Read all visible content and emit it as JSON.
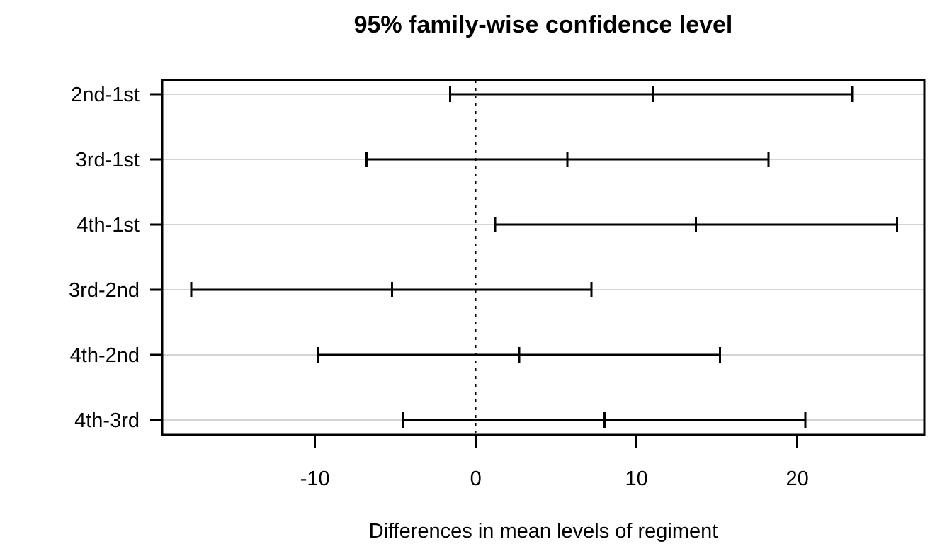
{
  "chart_data": {
    "type": "scatter",
    "subtype": "confidence-interval-plot (Tukey HSD)",
    "title": "95% family-wise confidence level",
    "xlabel": "Differences in mean levels of regiment",
    "ylabel": "",
    "categories": [
      "2nd-1st",
      "3rd-1st",
      "4th-1st",
      "3rd-2nd",
      "4th-2nd",
      "4th-3rd"
    ],
    "series": [
      {
        "name": "2nd-1st",
        "lower": -1.6,
        "center": 11.0,
        "upper": 23.4
      },
      {
        "name": "3rd-1st",
        "lower": -6.8,
        "center": 5.7,
        "upper": 18.2
      },
      {
        "name": "4th-1st",
        "lower": 1.2,
        "center": 13.7,
        "upper": 26.2
      },
      {
        "name": "3rd-2nd",
        "lower": -17.7,
        "center": -5.2,
        "upper": 7.2
      },
      {
        "name": "4th-2nd",
        "lower": -9.8,
        "center": 2.7,
        "upper": 15.2
      },
      {
        "name": "4th-3rd",
        "lower": -4.5,
        "center": 8.0,
        "upper": 20.5
      }
    ],
    "xlim": [
      -19.5,
      27.9
    ],
    "x_ticks": [
      -10,
      0,
      10,
      20
    ],
    "reference_line_x": 0,
    "reference_line_style": "dashed",
    "grid": "horizontal light gray lines, one per comparison row",
    "legend": "none",
    "confidence_level": "95%"
  },
  "colors": {
    "line": "#000000",
    "grid_line": "#D4D4D4",
    "background": "#FFFFFF",
    "text": "#000000"
  }
}
